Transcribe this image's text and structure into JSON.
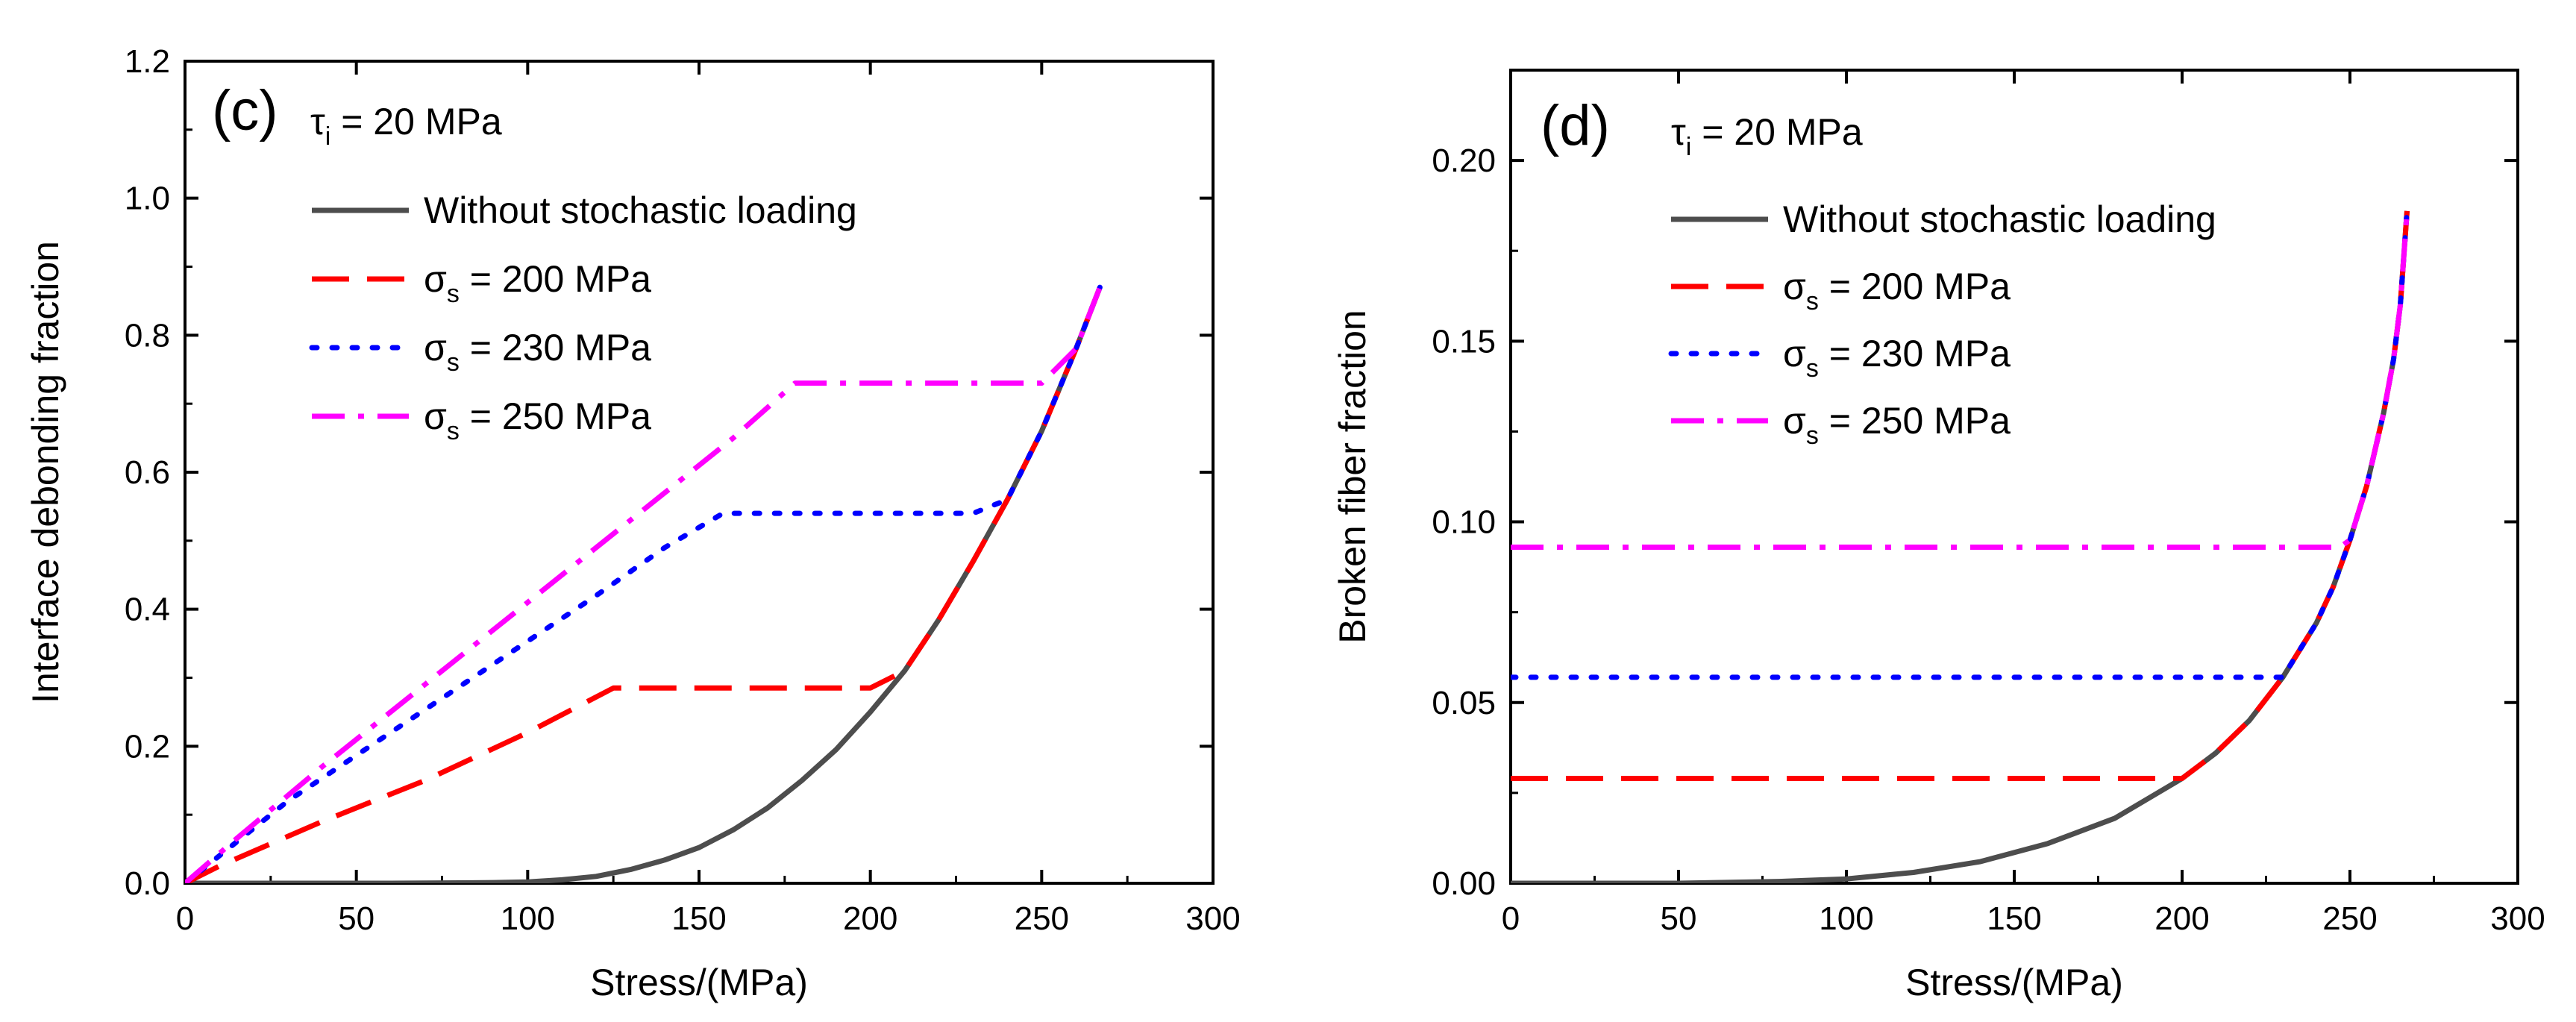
{
  "colors": {
    "baseline": "#4d4d4d",
    "s200": "#ff0000",
    "s230": "#0000ff",
    "s250": "#ff00ff"
  },
  "chart_data": [
    {
      "type": "line",
      "panel_label": "(c)",
      "tau_symbol": "τ",
      "tau_subscript": "i",
      "tau_text": " = 20 MPa",
      "xlabel": "Stress/(MPa)",
      "ylabel": "Interface debonding fraction",
      "xlim": [
        0,
        300
      ],
      "ylim": [
        0,
        1.2
      ],
      "xticks": [
        0,
        50,
        100,
        150,
        200,
        250,
        300
      ],
      "xtick_labels": [
        "0",
        "50",
        "100",
        "150",
        "200",
        "250",
        "300"
      ],
      "yticks": [
        0,
        0.2,
        0.4,
        0.6,
        0.8,
        1.0,
        1.2
      ],
      "ytick_labels": [
        "0.0",
        "0.2",
        "0.4",
        "0.6",
        "0.8",
        "1.0",
        "1.2"
      ],
      "series": [
        {
          "name": "Without stochastic loading",
          "name_prefix": "",
          "name_sub": "",
          "name_rest": "Without stochastic loading",
          "style": "solid",
          "color_key": "baseline",
          "x": [
            0,
            20,
            40,
            60,
            80,
            90,
            100,
            110,
            120,
            130,
            140,
            150,
            160,
            170,
            180,
            190,
            200,
            210,
            220,
            230,
            240,
            250,
            260,
            267
          ],
          "y": [
            0,
            0,
            0,
            0,
            0.0005,
            0.001,
            0.002,
            0.005,
            0.01,
            0.02,
            0.034,
            0.052,
            0.078,
            0.11,
            0.15,
            0.195,
            0.25,
            0.31,
            0.385,
            0.47,
            0.56,
            0.66,
            0.78,
            0.87
          ]
        },
        {
          "name": "σs = 200 MPa",
          "name_prefix": "σ",
          "name_sub": "s",
          "name_rest": " = 200 MPa",
          "style": "dash",
          "color_key": "s200",
          "x": [
            0,
            10,
            40,
            70,
            100,
            125,
            150,
            175,
            200,
            210,
            220,
            230,
            240,
            250,
            260,
            267
          ],
          "y": [
            0,
            0.025,
            0.09,
            0.15,
            0.22,
            0.285,
            0.285,
            0.285,
            0.285,
            0.31,
            0.385,
            0.47,
            0.56,
            0.66,
            0.78,
            0.87
          ]
        },
        {
          "name": "σs = 230 MPa",
          "name_prefix": "σ",
          "name_sub": "s",
          "name_rest": " = 230 MPa",
          "style": "dot",
          "color_key": "s230",
          "x": [
            0,
            10,
            30,
            60,
            90,
            120,
            140,
            157,
            180,
            200,
            220,
            230,
            240,
            250,
            260,
            267
          ],
          "y": [
            0,
            0.04,
            0.12,
            0.22,
            0.32,
            0.42,
            0.49,
            0.54,
            0.54,
            0.54,
            0.54,
            0.54,
            0.56,
            0.66,
            0.78,
            0.87
          ]
        },
        {
          "name": "σs = 250 MPa",
          "name_prefix": "σ",
          "name_sub": "s",
          "name_rest": " = 250 MPa",
          "style": "dashdot",
          "color_key": "s250",
          "x": [
            0,
            15,
            40,
            70,
            100,
            130,
            160,
            178,
            200,
            225,
            250,
            260,
            267
          ],
          "y": [
            0,
            0.065,
            0.17,
            0.29,
            0.41,
            0.53,
            0.65,
            0.73,
            0.73,
            0.73,
            0.73,
            0.78,
            0.87
          ]
        }
      ]
    },
    {
      "type": "line",
      "panel_label": "(d)",
      "tau_symbol": "τ",
      "tau_subscript": "i",
      "tau_text": " = 20 MPa",
      "xlabel": "Stress/(MPa)",
      "ylabel": "Broken fiber fraction",
      "xlim": [
        0,
        300
      ],
      "ylim": [
        0,
        0.225
      ],
      "xticks": [
        0,
        50,
        100,
        150,
        200,
        250,
        300
      ],
      "xtick_labels": [
        "0",
        "50",
        "100",
        "150",
        "200",
        "250",
        "300"
      ],
      "yticks": [
        0,
        0.05,
        0.1,
        0.15,
        0.2
      ],
      "ytick_labels": [
        "0.00",
        "0.05",
        "0.10",
        "0.15",
        "0.20"
      ],
      "series": [
        {
          "name": "Without stochastic loading",
          "name_prefix": "",
          "name_sub": "",
          "name_rest": "Without stochastic loading",
          "style": "solid",
          "color_key": "baseline",
          "x": [
            0,
            50,
            80,
            100,
            120,
            140,
            160,
            180,
            200,
            210,
            220,
            230,
            240,
            245,
            250,
            255,
            260,
            263,
            265,
            267
          ],
          "y": [
            0,
            0,
            0.0005,
            0.0012,
            0.003,
            0.006,
            0.011,
            0.018,
            0.029,
            0.036,
            0.045,
            0.057,
            0.072,
            0.082,
            0.095,
            0.11,
            0.13,
            0.145,
            0.16,
            0.186
          ]
        },
        {
          "name": "σs = 200 MPa",
          "name_prefix": "σ",
          "name_sub": "s",
          "name_rest": " = 200 MPa",
          "style": "dash",
          "color_key": "s200",
          "x": [
            0,
            50,
            100,
            150,
            200,
            210,
            220,
            230,
            240,
            245,
            250,
            255,
            260,
            263,
            265,
            267
          ],
          "y": [
            0.029,
            0.029,
            0.029,
            0.029,
            0.029,
            0.036,
            0.045,
            0.057,
            0.072,
            0.082,
            0.095,
            0.11,
            0.13,
            0.145,
            0.16,
            0.186
          ]
        },
        {
          "name": "σs = 230 MPa",
          "name_prefix": "σ",
          "name_sub": "s",
          "name_rest": " = 230 MPa",
          "style": "dot",
          "color_key": "s230",
          "x": [
            0,
            50,
            100,
            150,
            200,
            230,
            240,
            245,
            250,
            255,
            260,
            263,
            265,
            267
          ],
          "y": [
            0.057,
            0.057,
            0.057,
            0.057,
            0.057,
            0.057,
            0.072,
            0.082,
            0.095,
            0.11,
            0.13,
            0.145,
            0.16,
            0.186
          ]
        },
        {
          "name": "σs = 250 MPa",
          "name_prefix": "σ",
          "name_sub": "s",
          "name_rest": " = 250 MPa",
          "style": "dashdot",
          "color_key": "s250",
          "x": [
            0,
            50,
            100,
            150,
            200,
            247,
            250,
            255,
            260,
            263,
            265,
            267
          ],
          "y": [
            0.093,
            0.093,
            0.093,
            0.093,
            0.093,
            0.093,
            0.095,
            0.11,
            0.13,
            0.145,
            0.16,
            0.186
          ]
        }
      ]
    }
  ]
}
